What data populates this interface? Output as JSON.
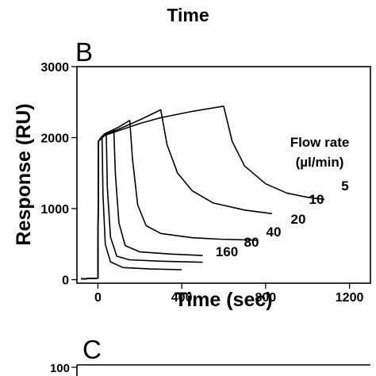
{
  "top_partial": {
    "xlabel": "Time"
  },
  "panel_b": {
    "label": "B",
    "chart_data": {
      "type": "line",
      "xlabel": "Time (sec)",
      "ylabel": "Response (RU)",
      "xlim": [
        -100,
        1300
      ],
      "ylim": [
        -50,
        3000
      ],
      "xticks": [
        0,
        400,
        800,
        1200
      ],
      "yticks": [
        0,
        1000,
        2000,
        3000
      ],
      "grid": false,
      "legend_title": "Flow rate",
      "legend_unit": "µl/min",
      "series": [
        {
          "name": "5",
          "points": [
            [
              -80,
              10
            ],
            [
              0,
              20
            ],
            [
              3,
              1950
            ],
            [
              20,
              2020
            ],
            [
              100,
              2100
            ],
            [
              200,
              2200
            ],
            [
              300,
              2280
            ],
            [
              450,
              2370
            ],
            [
              595,
              2440
            ],
            [
              600,
              2440
            ],
            [
              640,
              1950
            ],
            [
              700,
              1600
            ],
            [
              800,
              1350
            ],
            [
              900,
              1220
            ],
            [
              1000,
              1160
            ],
            [
              1080,
              1130
            ]
          ]
        },
        {
          "name": "10",
          "points": [
            [
              -80,
              10
            ],
            [
              0,
              20
            ],
            [
              3,
              1950
            ],
            [
              20,
              2020
            ],
            [
              100,
              2120
            ],
            [
              200,
              2250
            ],
            [
              298,
              2390
            ],
            [
              300,
              2390
            ],
            [
              330,
              1900
            ],
            [
              380,
              1500
            ],
            [
              450,
              1250
            ],
            [
              550,
              1080
            ],
            [
              700,
              980
            ],
            [
              830,
              930
            ]
          ]
        },
        {
          "name": "20",
          "points": [
            [
              -80,
              10
            ],
            [
              0,
              20
            ],
            [
              3,
              1950
            ],
            [
              30,
              2050
            ],
            [
              100,
              2150
            ],
            [
              150,
              2240
            ],
            [
              152,
              2240
            ],
            [
              165,
              1700
            ],
            [
              190,
              1050
            ],
            [
              230,
              760
            ],
            [
              300,
              650
            ],
            [
              450,
              590
            ],
            [
              580,
              570
            ],
            [
              760,
              555
            ]
          ]
        },
        {
          "name": "40",
          "points": [
            [
              -80,
              10
            ],
            [
              0,
              20
            ],
            [
              3,
              1950
            ],
            [
              30,
              2050
            ],
            [
              74,
              2110
            ],
            [
              76,
              2110
            ],
            [
              83,
              1500
            ],
            [
              100,
              800
            ],
            [
              130,
              480
            ],
            [
              200,
              390
            ],
            [
              350,
              360
            ],
            [
              500,
              340
            ]
          ]
        },
        {
          "name": "80",
          "points": [
            [
              -80,
              10
            ],
            [
              0,
              20
            ],
            [
              3,
              1950
            ],
            [
              20,
              2000
            ],
            [
              38,
              2040
            ],
            [
              40,
              2040
            ],
            [
              45,
              1300
            ],
            [
              60,
              600
            ],
            [
              90,
              330
            ],
            [
              150,
              280
            ],
            [
              300,
              260
            ],
            [
              500,
              245
            ]
          ]
        },
        {
          "name": "160",
          "points": [
            [
              -80,
              10
            ],
            [
              0,
              20
            ],
            [
              3,
              1950
            ],
            [
              18,
              1990
            ],
            [
              20,
              1990
            ],
            [
              24,
              1200
            ],
            [
              35,
              500
            ],
            [
              60,
              250
            ],
            [
              120,
              170
            ],
            [
              250,
              150
            ],
            [
              400,
              140
            ]
          ]
        }
      ]
    }
  },
  "panel_c": {
    "label": "C",
    "ytick_visible": "100"
  }
}
